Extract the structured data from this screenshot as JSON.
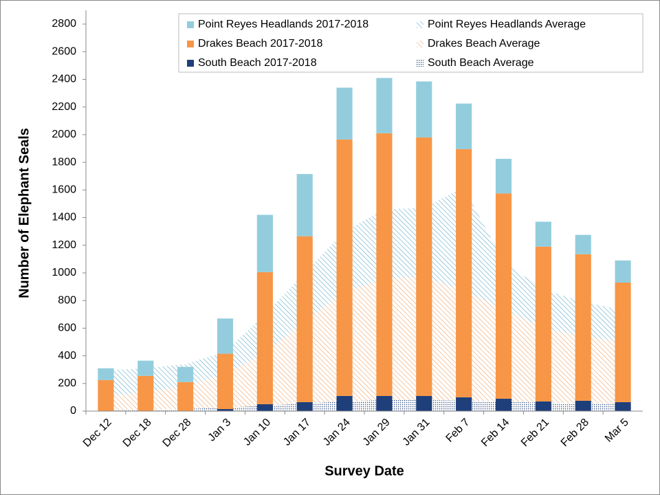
{
  "chart_data": {
    "type": "bar",
    "x_label": "Survey Date",
    "y_label": "Number of Elephant Seals",
    "categories": [
      "Dec 12",
      "Dec 18",
      "Dec 28",
      "Jan 3",
      "Jan 10",
      "Jan 17",
      "Jan 24",
      "Jan 29",
      "Jan 31",
      "Feb 7",
      "Feb 14",
      "Feb 21",
      "Feb 28",
      "Mar 5"
    ],
    "ylim": [
      0,
      2800
    ],
    "yticks": [
      0,
      200,
      400,
      600,
      800,
      1000,
      1200,
      1400,
      1600,
      1800,
      2000,
      2200,
      2400,
      2600,
      2800
    ],
    "legend": "top-right",
    "series": [
      {
        "name": "Point Reyes Headlands 2017-2018",
        "type": "bar",
        "color": "#93cddd",
        "values": [
          85,
          110,
          110,
          255,
          415,
          450,
          375,
          400,
          405,
          330,
          250,
          180,
          140,
          160
        ]
      },
      {
        "name": "Point Reyes Headlands Average",
        "type": "area",
        "pattern": "diagonal",
        "color": "#5aa9c6",
        "values": [
          190,
          170,
          160,
          160,
          280,
          350,
          440,
          500,
          500,
          750,
          340,
          280,
          250,
          230
        ]
      },
      {
        "name": "Drakes Beach 2017-2018",
        "type": "bar",
        "color": "#f79646",
        "values": [
          225,
          255,
          210,
          400,
          955,
          1200,
          1855,
          1900,
          1870,
          1795,
          1485,
          1120,
          1060,
          865
        ]
      },
      {
        "name": "Drakes Beach Average",
        "type": "area",
        "pattern": "diagonal",
        "color": "#f0a060",
        "values": [
          100,
          130,
          165,
          245,
          380,
          595,
          790,
          880,
          890,
          795,
          670,
          540,
          485,
          450
        ]
      },
      {
        "name": "South Beach 2017-2018",
        "type": "bar",
        "color": "#1f3f7a",
        "values": [
          0,
          0,
          0,
          15,
          50,
          65,
          110,
          110,
          110,
          100,
          90,
          70,
          75,
          65
        ]
      },
      {
        "name": "South Beach Average",
        "type": "area",
        "pattern": "dots",
        "color": "#2a4a80",
        "values": [
          5,
          10,
          15,
          25,
          40,
          55,
          70,
          80,
          80,
          75,
          70,
          60,
          55,
          50
        ]
      }
    ]
  }
}
